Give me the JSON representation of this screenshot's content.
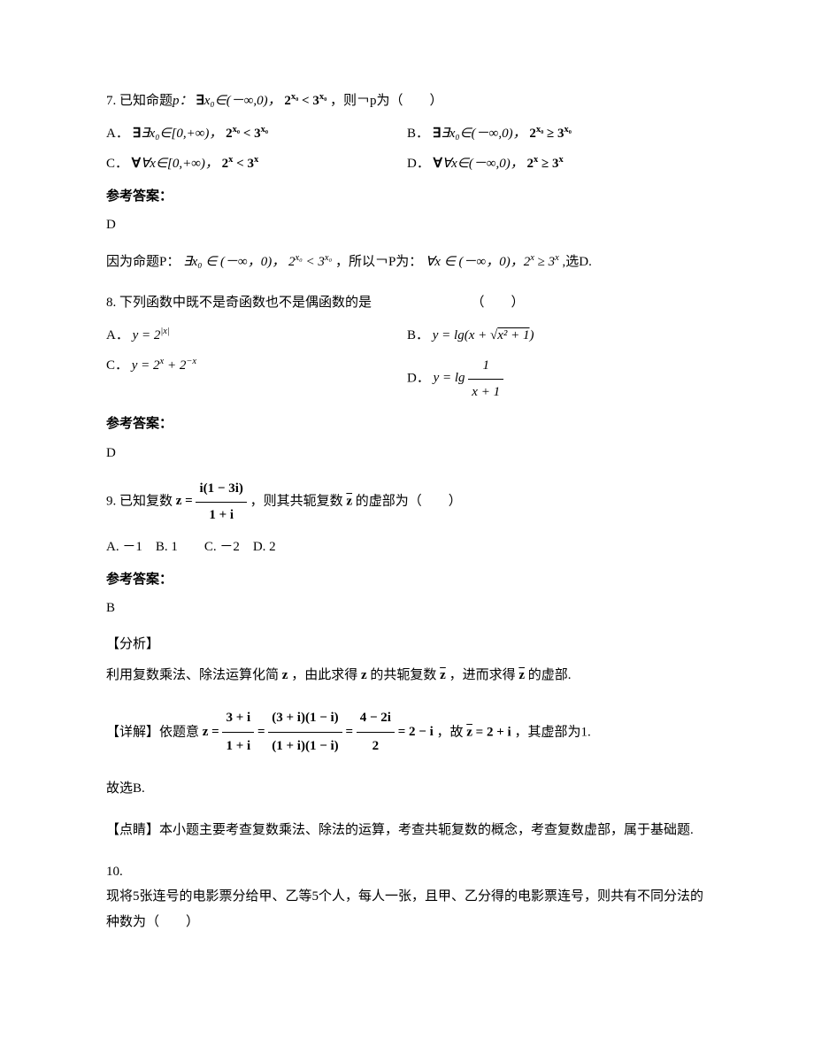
{
  "q7": {
    "number": "7.",
    "text_prefix": "已知命题",
    "p_label": "p：",
    "existential": "∃",
    "var": "x₀∈(－∞,0)，",
    "ineq": "2",
    "sup1": "x₀",
    "lt": "< 3",
    "sup2": "x₀",
    "text_suffix": "，则￢p为（　　）",
    "optA_label": "A．",
    "optA_text": "∃x₀∈[0,+∞)，",
    "optA_ineq": "2",
    "optA_sup1": "x₀",
    "optA_lt": "< 3",
    "optA_sup2": "x₀",
    "optB_label": "B．",
    "optB_text": "∃x₀∈(－∞,0)，",
    "optB_ineq": "2",
    "optB_sup1": "x₀",
    "optB_gte": "≥ 3",
    "optB_sup2": "x₀",
    "optC_label": "C．",
    "optC_text": "∀x∈[0,+∞)，",
    "optC_ineq": "2",
    "optC_sup1": "x",
    "optC_lt": "< 3",
    "optC_sup2": "x",
    "optD_label": "D．",
    "optD_text": "∀x∈(－∞,0)，",
    "optD_ineq": "2",
    "optD_sup1": "x",
    "optD_gte": "≥ 3",
    "optD_sup2": "x",
    "answer_label": "参考答案：",
    "answer": "D",
    "explain_prefix": "因为命题P：",
    "explain_mid": "∃x₀ ∈ (－∞，0)，",
    "explain_ineq": "2",
    "explain_sup1": "x₀",
    "explain_lt": " < 3",
    "explain_sup2": "x₀",
    "explain_mid2": "，所以￢P为：",
    "explain_all": "∀x ∈ (－∞，0)，2",
    "explain_sup3": "x",
    "explain_gte": " ≥ 3",
    "explain_sup4": "x",
    "explain_end": ",选D."
  },
  "q8": {
    "number": "8.",
    "text": "下列函数中既不是奇函数也不是偶函数的是　　　　　　　　（　　）",
    "optA_label": "A．",
    "optA_formula": "y = 2",
    "optA_sup": "|x|",
    "optB_label": "B．",
    "optB_formula_pre": "y = lg(x + ",
    "optB_sqrt": "√",
    "optB_sqrt_inner": "x² + 1",
    "optB_formula_post": ")",
    "optC_label": "C．",
    "optC_formula": "y = 2",
    "optC_sup1": "x",
    "optC_plus": " + 2",
    "optC_sup2": "−x",
    "optD_label": "D．",
    "optD_pre": "y = lg ",
    "optD_frac_top": "1",
    "optD_frac_bot": "x + 1",
    "answer_label": "参考答案：",
    "answer": "D"
  },
  "q9": {
    "number": "9.",
    "text_prefix": "已知复数",
    "z_eq": "z = ",
    "frac_top": "i(1 − 3i)",
    "frac_bot": "1 + i",
    "text_mid": "，则其共轭复数",
    "zbar": "z̄",
    "text_suffix": "的虚部为（　　）",
    "options": "A. －1　B. 1　　C. －2　D. 2",
    "answer_label": "参考答案：",
    "answer": "B",
    "analysis_label": "【分析】",
    "analysis_text_1": "利用复数乘法、除法运算化简",
    "z_var": "z",
    "analysis_text_2": "，由此求得",
    "analysis_text_3": "的共轭复数",
    "analysis_text_4": "，进而求得",
    "analysis_text_5": "的虚部.",
    "detail_label": "【详解】依题意",
    "detail_frac1_top": "3 + i",
    "detail_frac1_bot": "1 + i",
    "detail_eq1": " = ",
    "detail_frac2_top": "(3 + i)(1 − i)",
    "detail_frac2_bot": "(1 + i)(1 − i)",
    "detail_eq2": " = ",
    "detail_frac3_top": "4 − 2i",
    "detail_frac3_bot": "2",
    "detail_eq3": " = 2 − i",
    "detail_mid": "，故",
    "detail_zbar": "z̄ = 2 + i",
    "detail_end": "，其虚部为1.",
    "conclusion": "故选B.",
    "point_label": "【点睛】",
    "point_text": "本小题主要考查复数乘法、除法的运算，考查共轭复数的概念，考查复数虚部，属于基础题."
  },
  "q10": {
    "number": "10.",
    "text": "现将5张连号的电影票分给甲、乙等5个人，每人一张，且甲、乙分得的电影票连号，则共有不同分法的种数为（　　）"
  }
}
